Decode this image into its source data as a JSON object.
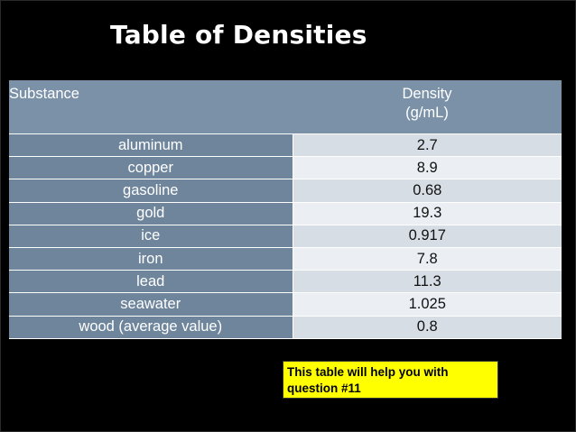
{
  "title": "Table of Densities",
  "table": {
    "headers": {
      "substance": "Substance",
      "density": "Density",
      "density_unit": "(g/mL)"
    },
    "rows": [
      {
        "substance": "aluminum",
        "density": "2.7"
      },
      {
        "substance": "copper",
        "density": "8.9"
      },
      {
        "substance": "gasoline",
        "density": "0.68"
      },
      {
        "substance": "gold",
        "density": "19.3"
      },
      {
        "substance": "ice",
        "density": "0.917"
      },
      {
        "substance": "iron",
        "density": "7.8"
      },
      {
        "substance": "lead",
        "density": "11.3"
      },
      {
        "substance": "seawater",
        "density": "1.025"
      },
      {
        "substance": "wood (average value)",
        "density": "0.8"
      }
    ]
  },
  "note": "This table will help you with question #11",
  "colors": {
    "background": "#000000",
    "header_fill": "#7a91a8",
    "substance_fill": "#6e859c",
    "row_fill_a": "#d6dde5",
    "row_fill_b": "#ebeff3",
    "note_fill": "#ffff00"
  }
}
